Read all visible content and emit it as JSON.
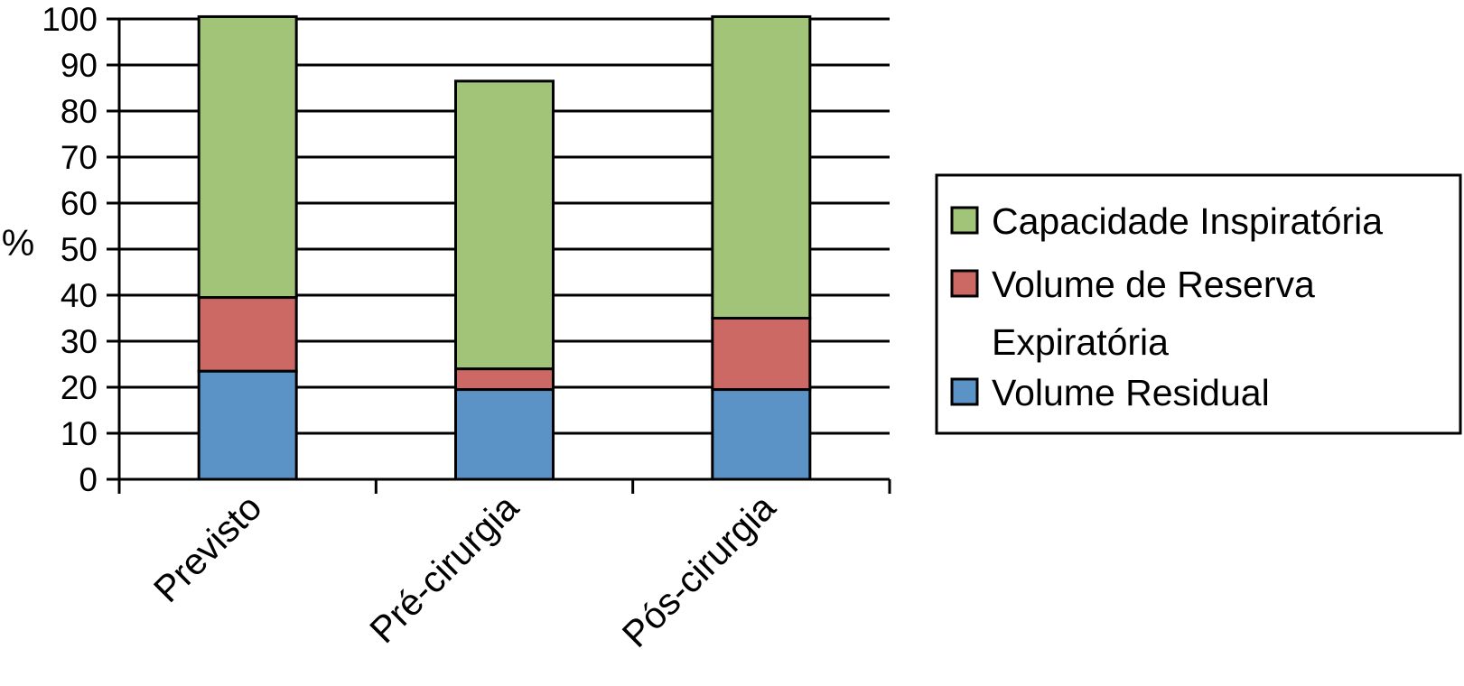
{
  "chart_data": {
    "type": "bar",
    "stacked": true,
    "categories": [
      "Previsto",
      "Pré-cirurgia",
      "Pós-cirurgia"
    ],
    "series": [
      {
        "name": "Volume Residual",
        "color": "#5b93c6",
        "values": [
          23.5,
          19.5,
          19.5
        ]
      },
      {
        "name": "Volume de Reserva Expiratória",
        "color": "#cd6964",
        "values": [
          16,
          4.5,
          15.5
        ]
      },
      {
        "name": "Capacidade Inspiratória",
        "color": "#a1c478",
        "values": [
          61,
          62.5,
          65.5
        ]
      }
    ],
    "legend_order": [
      2,
      1,
      0
    ],
    "legend_lines": [
      [
        "Capacidade Inspiratória"
      ],
      [
        "Volume de Reserva",
        "Expiratória"
      ],
      [
        "Volume Residual"
      ]
    ],
    "ylabel": "%",
    "xlabel": "",
    "ylim": [
      0,
      100
    ],
    "yticks": [
      0,
      10,
      20,
      30,
      40,
      50,
      60,
      70,
      80,
      90,
      100
    ],
    "grid": true,
    "legend_position": "right"
  }
}
